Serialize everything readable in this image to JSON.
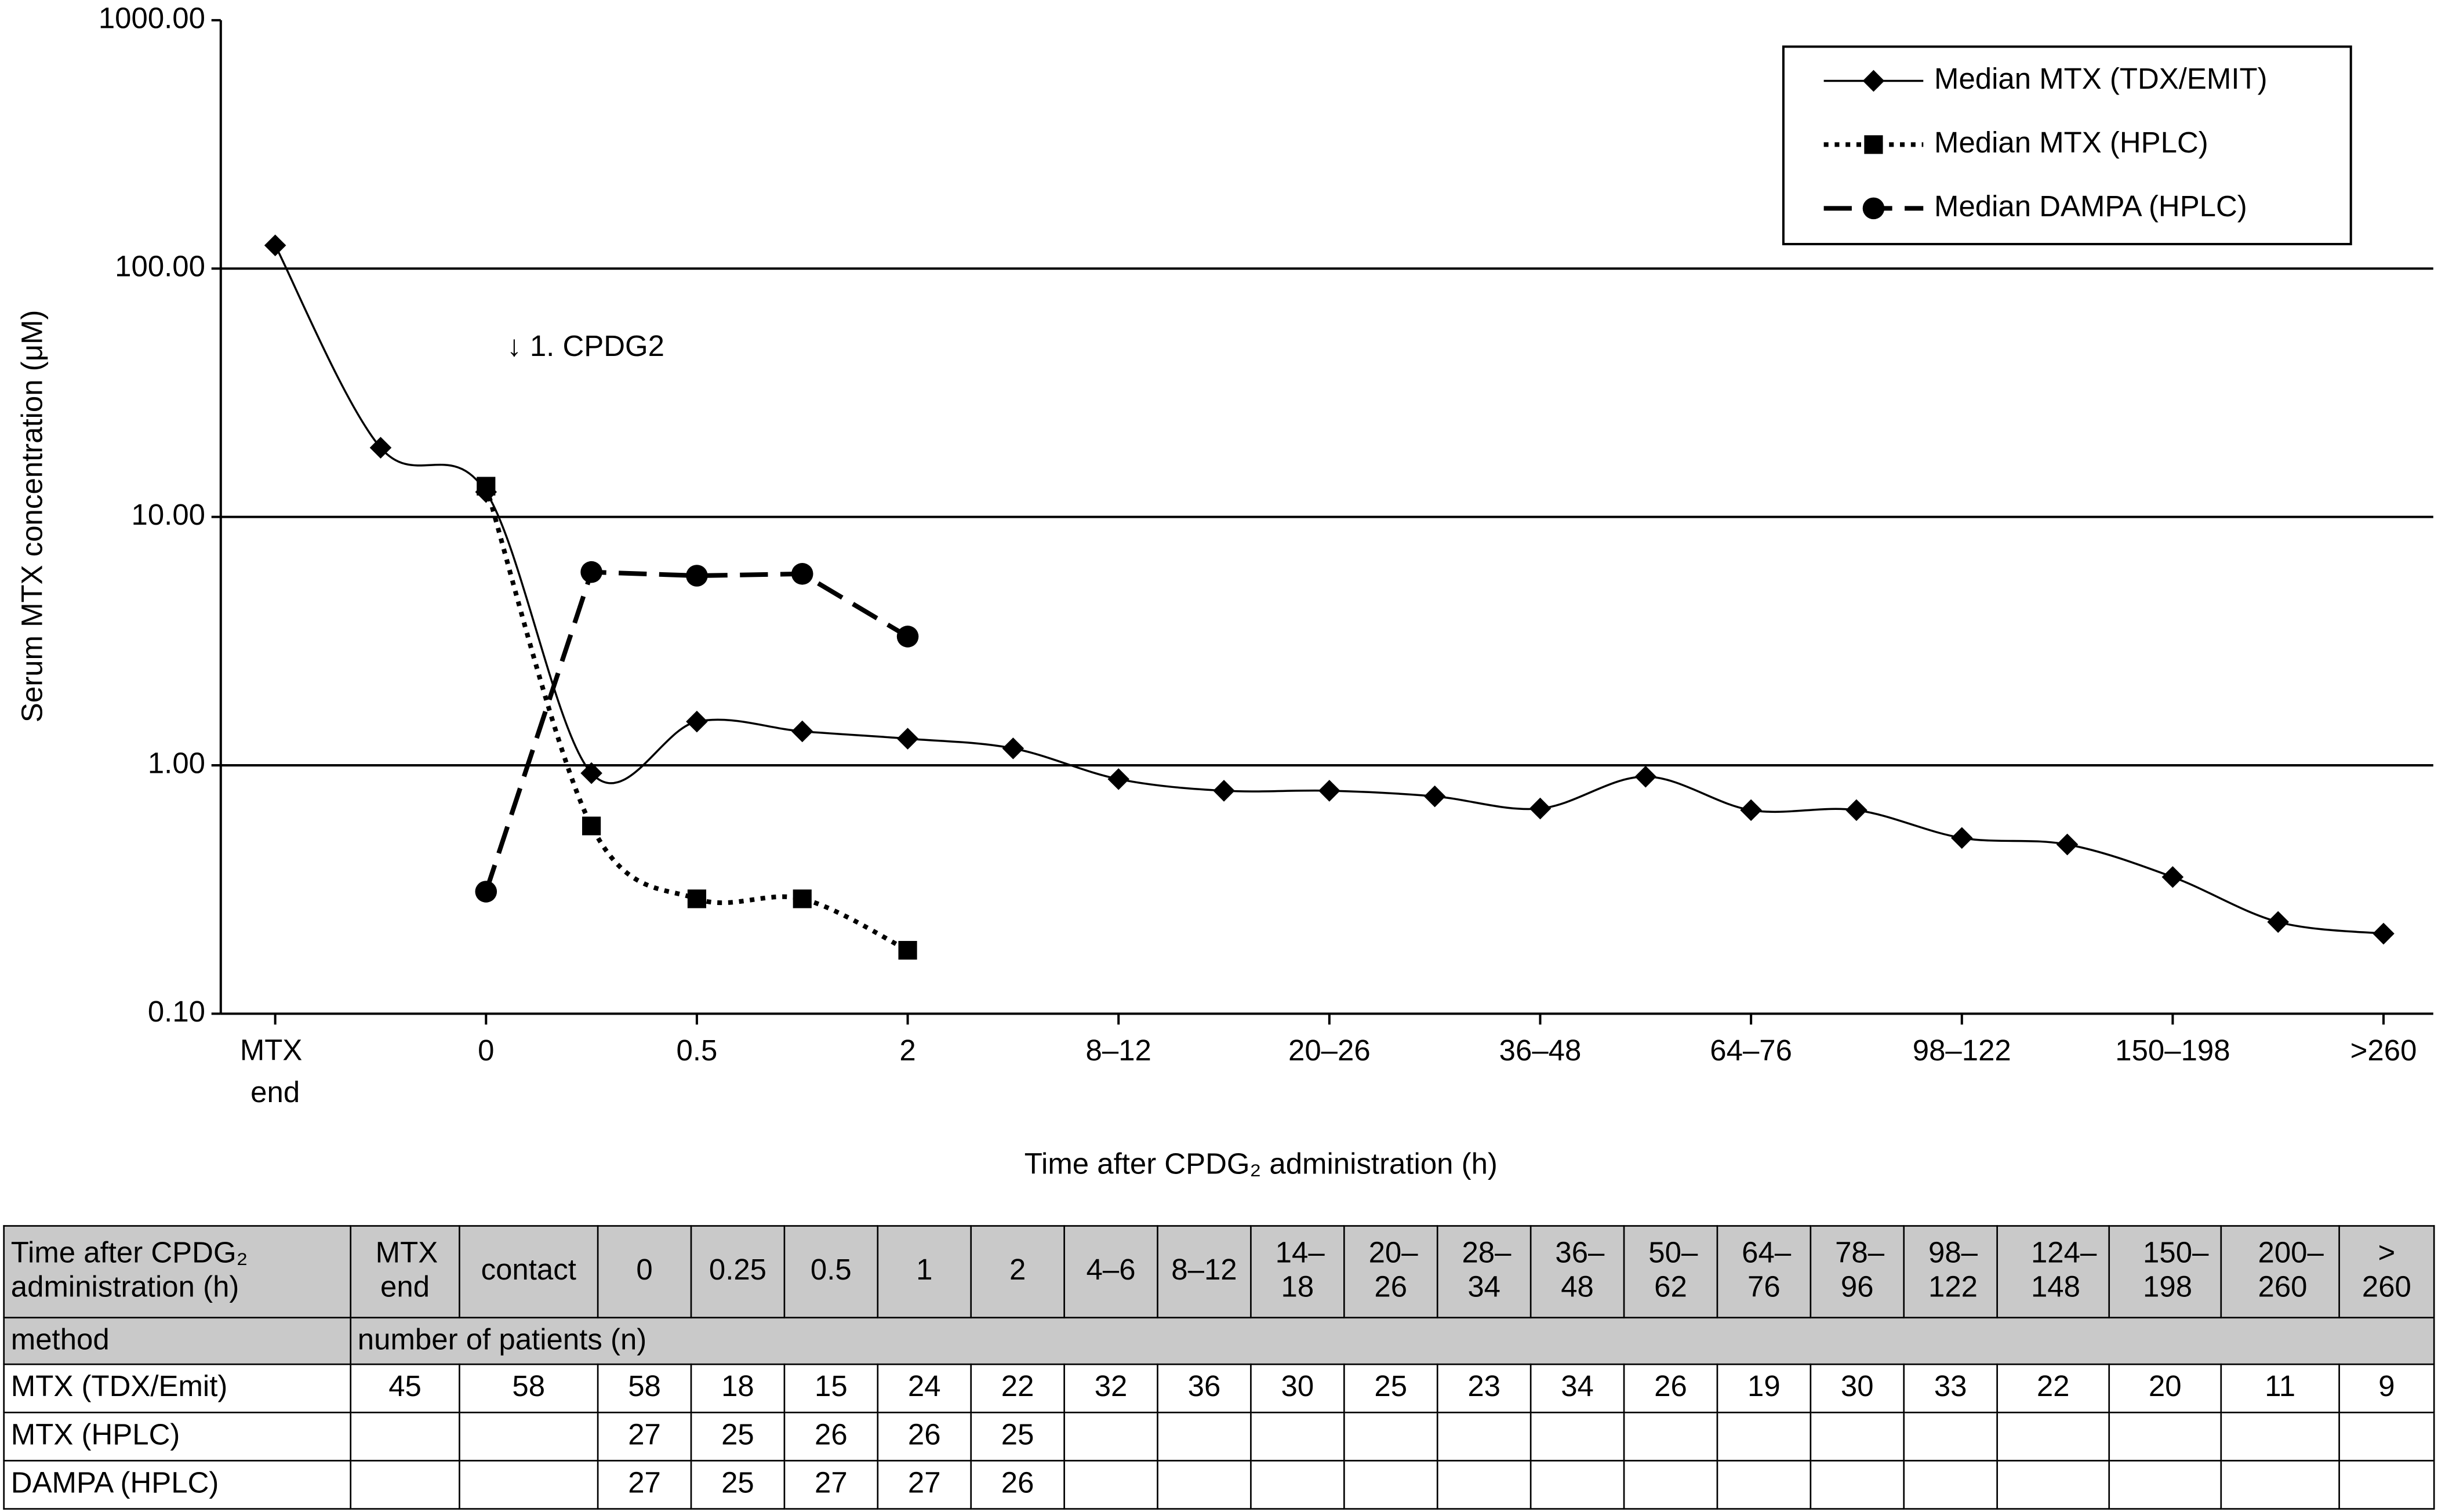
{
  "chart_data": {
    "type": "line",
    "y_label": "Serum MTX concentration (μM)",
    "x_label": "Time after CPDG₂ administration (h)",
    "annotation": "↓ 1. CPDG2",
    "categories": [
      "MTX end",
      null,
      "0",
      null,
      "0.5",
      null,
      "2",
      null,
      "8–12",
      null,
      "20–26",
      null,
      "36–48",
      null,
      "64–76",
      null,
      "98–122",
      null,
      "150–198",
      null,
      ">260"
    ],
    "log_y": true,
    "grid": true,
    "legend": "upper right",
    "ylim": [
      0.1,
      1000
    ],
    "yticks": [
      {
        "value": 0.1,
        "label": "0.10"
      },
      {
        "value": 1,
        "label": "1.00"
      },
      {
        "value": 10,
        "label": "10.00"
      },
      {
        "value": 100,
        "label": "100.00"
      },
      {
        "value": 1000,
        "label": "1000.00"
      }
    ],
    "series": [
      {
        "name": "Median MTX (TDX/EMIT)",
        "color": "#000000",
        "line_style": "solid",
        "marker": "diamond",
        "smooth": true,
        "values": [
          124,
          19,
          12.6,
          0.93,
          1.5,
          1.37,
          1.28,
          1.17,
          0.88,
          0.79,
          0.79,
          0.75,
          0.67,
          0.9,
          0.66,
          0.66,
          0.51,
          0.48,
          0.355,
          0.234,
          0.21
        ]
      },
      {
        "name": "Median MTX (HPLC)",
        "color": "#000000",
        "line_style": "dotted",
        "marker": "square",
        "smooth": true,
        "values": [
          null,
          null,
          13.3,
          0.57,
          0.29,
          0.29,
          0.18,
          null,
          null,
          null,
          null,
          null,
          null,
          null,
          null,
          null,
          null,
          null,
          null,
          null,
          null
        ]
      },
      {
        "name": "Median DAMPA (HPLC)",
        "color": "#000000",
        "line_style": "dashed",
        "marker": "circle",
        "smooth": false,
        "values": [
          null,
          null,
          0.31,
          6.0,
          5.8,
          5.9,
          3.3,
          null,
          null,
          null,
          null,
          null,
          null,
          null,
          null,
          null,
          null,
          null,
          null,
          null,
          null
        ]
      }
    ]
  },
  "table": {
    "header": [
      "Time after CPDG₂ administration (h)",
      "MTX end",
      "contact",
      "0",
      "0.25",
      "0.5",
      "1",
      "2",
      "4–6",
      "8–12",
      "14–18",
      "20–26",
      "28–34",
      "36–48",
      "50–62",
      "64–76",
      "78–96",
      "98–122",
      "124–148",
      "150–198",
      "200–260",
      "> 260"
    ],
    "method_row": [
      "method",
      "number of patients (n)"
    ],
    "rows": [
      [
        "MTX (TDX/Emit)",
        45,
        58,
        58,
        18,
        15,
        24,
        22,
        32,
        36,
        30,
        25,
        23,
        34,
        26,
        19,
        30,
        33,
        22,
        20,
        11,
        9
      ],
      [
        "MTX (HPLC)",
        null,
        null,
        27,
        25,
        26,
        26,
        25,
        null,
        null,
        null,
        null,
        null,
        null,
        null,
        null,
        null,
        null,
        null,
        null,
        null,
        null
      ],
      [
        "DAMPA (HPLC)",
        null,
        null,
        27,
        25,
        27,
        27,
        26,
        null,
        null,
        null,
        null,
        null,
        null,
        null,
        null,
        null,
        null,
        null,
        null,
        null,
        null
      ]
    ]
  }
}
